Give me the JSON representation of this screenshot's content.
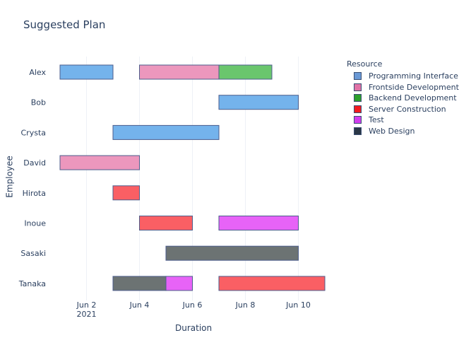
{
  "chart_data": {
    "type": "gantt",
    "title": "Suggested Plan",
    "xlabel": "Duration",
    "ylabel": "Employee",
    "legend_title": "Resource",
    "legend_position": "right",
    "grid": true,
    "x_ticks": [
      {
        "date": "2021-06-02",
        "label": "Jun 2",
        "sublabel": "2021"
      },
      {
        "date": "2021-06-04",
        "label": "Jun 4",
        "sublabel": ""
      },
      {
        "date": "2021-06-06",
        "label": "Jun 6",
        "sublabel": ""
      },
      {
        "date": "2021-06-08",
        "label": "Jun 8",
        "sublabel": ""
      },
      {
        "date": "2021-06-10",
        "label": "Jun 10",
        "sublabel": ""
      }
    ],
    "xlim": [
      "2021-06-00T12:00",
      "2021-06-11T18:00"
    ],
    "categories": [
      "Alex",
      "Bob",
      "Crysta",
      "David",
      "Hirota",
      "Inoue",
      "Sasaki",
      "Tanaka"
    ],
    "resources": [
      {
        "name": "Programming Interface",
        "color": "#74b3ec"
      },
      {
        "name": "Frontside Development",
        "color": "#ec97bd"
      },
      {
        "name": "Backend Development",
        "color": "#6ac66d"
      },
      {
        "name": "Server Construction",
        "color": "#fa5f64"
      },
      {
        "name": "Test",
        "color": "#e763f7"
      },
      {
        "name": "Web Design",
        "color": "#6c7373"
      }
    ],
    "legend_swatches": [
      "#6a99d6",
      "#e072a6",
      "#2ca02c",
      "#f21b1f",
      "#d13ded",
      "#2a3746"
    ],
    "tasks": [
      {
        "employee": "Alex",
        "resource": "Programming Interface",
        "start": "2021-06-01",
        "finish": "2021-06-03"
      },
      {
        "employee": "Alex",
        "resource": "Frontside Development",
        "start": "2021-06-04",
        "finish": "2021-06-07"
      },
      {
        "employee": "Alex",
        "resource": "Backend Development",
        "start": "2021-06-07",
        "finish": "2021-06-09"
      },
      {
        "employee": "Bob",
        "resource": "Programming Interface",
        "start": "2021-06-07",
        "finish": "2021-06-10"
      },
      {
        "employee": "Crysta",
        "resource": "Programming Interface",
        "start": "2021-06-03",
        "finish": "2021-06-07"
      },
      {
        "employee": "David",
        "resource": "Frontside Development",
        "start": "2021-06-01",
        "finish": "2021-06-04"
      },
      {
        "employee": "Hirota",
        "resource": "Server Construction",
        "start": "2021-06-03",
        "finish": "2021-06-04"
      },
      {
        "employee": "Inoue",
        "resource": "Server Construction",
        "start": "2021-06-04",
        "finish": "2021-06-06"
      },
      {
        "employee": "Inoue",
        "resource": "Test",
        "start": "2021-06-07",
        "finish": "2021-06-10"
      },
      {
        "employee": "Sasaki",
        "resource": "Web Design",
        "start": "2021-06-05",
        "finish": "2021-06-10"
      },
      {
        "employee": "Tanaka",
        "resource": "Web Design",
        "start": "2021-06-03",
        "finish": "2021-06-05"
      },
      {
        "employee": "Tanaka",
        "resource": "Test",
        "start": "2021-06-05",
        "finish": "2021-06-06"
      },
      {
        "employee": "Tanaka",
        "resource": "Server Construction",
        "start": "2021-06-07",
        "finish": "2021-06-11"
      }
    ]
  }
}
